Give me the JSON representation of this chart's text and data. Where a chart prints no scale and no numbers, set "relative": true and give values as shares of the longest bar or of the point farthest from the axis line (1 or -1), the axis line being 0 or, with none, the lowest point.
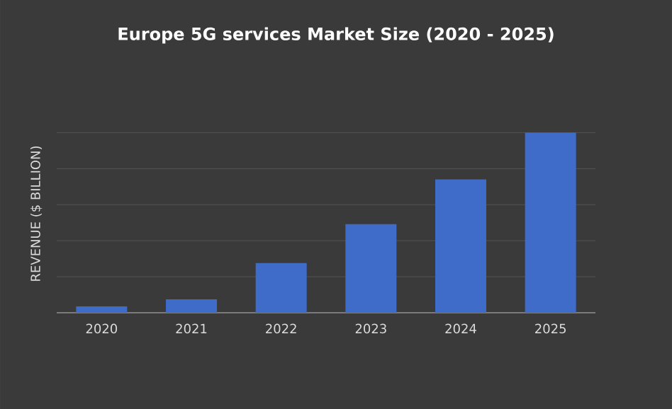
{
  "chart_data": {
    "type": "bar",
    "title": "Europe 5G services  Market Size (2020 - 2025)",
    "ylabel": "REVENUE ($ BILLION)",
    "categories": [
      "2020",
      "2021",
      "2022",
      "2023",
      "2024",
      "2025"
    ],
    "values": [
      0.035,
      0.075,
      0.276,
      0.492,
      0.74,
      1
    ],
    "color": "#3f6cc9",
    "relative": true,
    "grid": "y"
  }
}
